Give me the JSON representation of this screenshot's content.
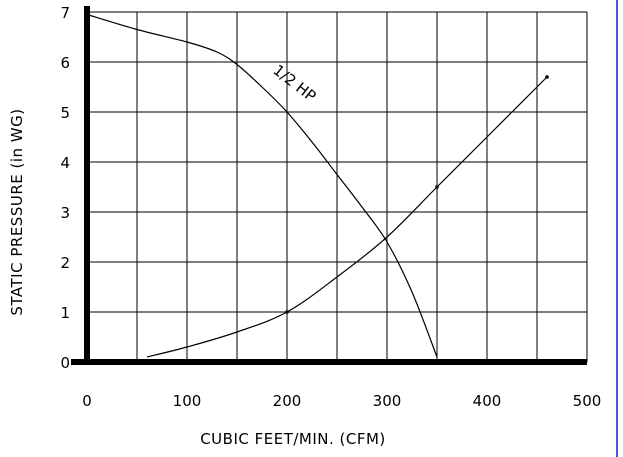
{
  "chart_data": {
    "type": "line",
    "xlabel": "CUBIC FEET/MIN. (CFM)",
    "ylabel": "STATIC PRESSURE (in WG)",
    "xlim": [
      0,
      500
    ],
    "ylim": [
      0,
      7
    ],
    "xticks": [
      "0",
      "100",
      "200",
      "300",
      "400",
      "500"
    ],
    "yticks": [
      "0",
      "1",
      "2",
      "3",
      "4",
      "5",
      "6",
      "7"
    ],
    "grid": true,
    "series": [
      {
        "name": "1/2 HP",
        "x": [
          0,
          50,
          100,
          130,
          150,
          175,
          200,
          225,
          250,
          275,
          300,
          325,
          350
        ],
        "y": [
          6.95,
          6.65,
          6.4,
          6.2,
          5.95,
          5.5,
          5.0,
          4.4,
          3.75,
          3.1,
          2.4,
          1.4,
          0.1
        ]
      },
      {
        "name": "",
        "x": [
          60,
          100,
          150,
          200,
          250,
          300,
          350,
          400,
          460
        ],
        "y": [
          0.1,
          0.3,
          0.6,
          1.0,
          1.7,
          2.5,
          3.5,
          4.5,
          5.7
        ],
        "markers_x": [
          200,
          350,
          460
        ],
        "markers_y": [
          1.0,
          3.5,
          5.7
        ]
      }
    ],
    "annotations": [
      {
        "text": "1/2 HP",
        "x": 185,
        "y": 5.8,
        "rotation": 38
      }
    ],
    "colors": {
      "curves": "#000000",
      "grid": "#000000",
      "axis": "#000000",
      "border": "#3b5fd9"
    }
  }
}
